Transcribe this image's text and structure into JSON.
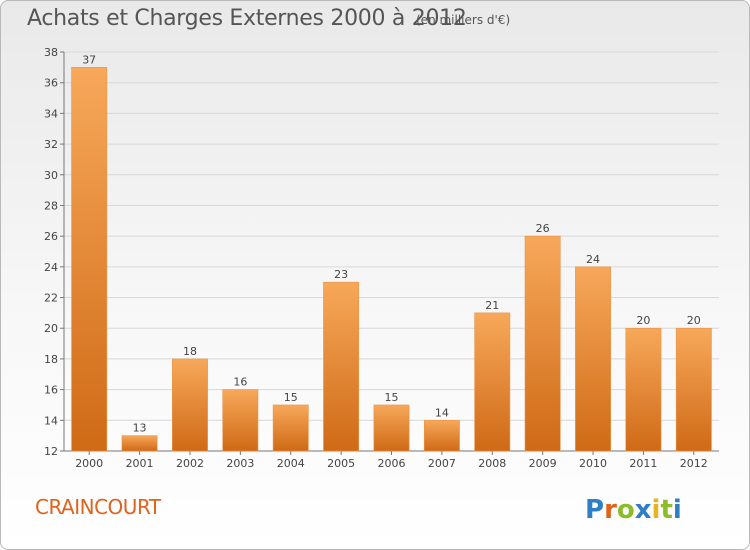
{
  "header": {
    "title": "Achats et Charges Externes 2000 à 2012",
    "unit": "(en milliers d'€)"
  },
  "footer": {
    "commune": "CRAINCOURT",
    "logo_text": "Proxiti"
  },
  "colors": {
    "bar_top": "#f7a85a",
    "bar_bottom": "#cf6a16",
    "commune_text": "#e0631c"
  },
  "chart_data": {
    "type": "bar",
    "title": "Achats et Charges Externes 2000 à 2012",
    "subtitle": "(en milliers d'€)",
    "xlabel": "",
    "ylabel": "",
    "categories": [
      "2000",
      "2001",
      "2002",
      "2003",
      "2004",
      "2005",
      "2006",
      "2007",
      "2008",
      "2009",
      "2010",
      "2011",
      "2012"
    ],
    "values": [
      37,
      13,
      18,
      16,
      15,
      23,
      15,
      14,
      21,
      26,
      24,
      20,
      20
    ],
    "ylim": [
      12,
      38
    ],
    "yticks": [
      12,
      14,
      16,
      18,
      20,
      22,
      24,
      26,
      28,
      30,
      32,
      34,
      36,
      38
    ],
    "grid": true,
    "legend": "none"
  }
}
